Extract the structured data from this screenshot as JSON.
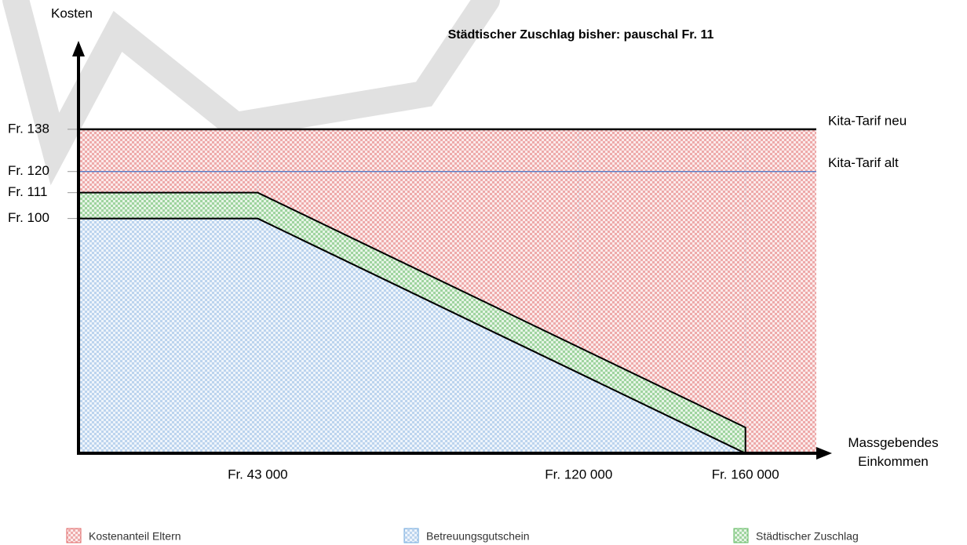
{
  "chart_data": {
    "type": "area",
    "title": "Städtischer Zuschlag bisher: pauschal Fr. 11",
    "ylabel": "Kosten",
    "xlabel": "Massgebendes Einkommen",
    "x": [
      0,
      43000,
      160000
    ],
    "xlim": [
      0,
      177000
    ],
    "ylim": [
      0,
      165
    ],
    "xticks": [
      {
        "value": 43000,
        "label": "Fr. 43 000"
      },
      {
        "value": 120000,
        "label": "Fr. 120 000"
      },
      {
        "value": 160000,
        "label": "Fr. 160 000"
      }
    ],
    "yticks": [
      {
        "value": 138,
        "label": "Fr. 138"
      },
      {
        "value": 120,
        "label": "Fr. 120"
      },
      {
        "value": 111,
        "label": "Fr. 111"
      },
      {
        "value": 100,
        "label": "Fr. 100"
      }
    ],
    "areas": [
      {
        "name": "Kostenanteil Eltern",
        "color": "#e06666",
        "values": [
          138,
          138,
          138
        ]
      },
      {
        "name": "Betreuungsgutschein",
        "color": "#6fa8dc",
        "values": [
          100,
          100,
          0
        ]
      },
      {
        "name": "Städtischer Zuschlag",
        "color": "#5cb85c",
        "values": [
          11,
          11,
          11
        ]
      }
    ],
    "lines": [
      {
        "name": "Kita-Tarif neu",
        "color": "#000000",
        "values": [
          138,
          138,
          138
        ]
      },
      {
        "name": "Kita-Tarif alt",
        "color": "#4472c4",
        "values": [
          120,
          120,
          120
        ]
      }
    ]
  }
}
